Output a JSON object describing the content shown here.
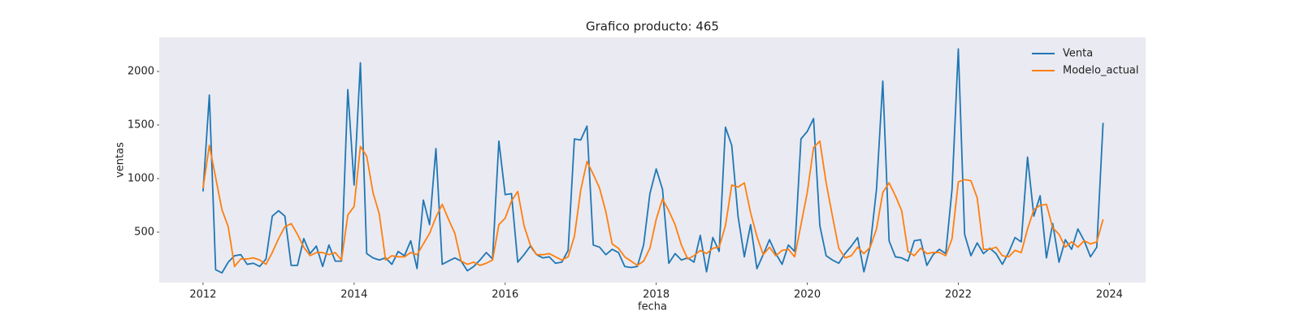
{
  "chart_data": {
    "type": "line",
    "title": "Grafico producto: 465",
    "xlabel": "fecha",
    "ylabel": "ventas",
    "x": [
      2012,
      2012.0833,
      2012.1667,
      2012.25,
      2012.3333,
      2012.4167,
      2012.5,
      2012.5833,
      2012.6667,
      2012.75,
      2012.8333,
      2012.9167,
      2013,
      2013.0833,
      2013.1667,
      2013.25,
      2013.3333,
      2013.4167,
      2013.5,
      2013.5833,
      2013.6667,
      2013.75,
      2013.8333,
      2013.9167,
      2014,
      2014.0833,
      2014.1667,
      2014.25,
      2014.3333,
      2014.4167,
      2014.5,
      2014.5833,
      2014.6667,
      2014.75,
      2014.8333,
      2014.9167,
      2015,
      2015.0833,
      2015.1667,
      2015.25,
      2015.3333,
      2015.4167,
      2015.5,
      2015.5833,
      2015.6667,
      2015.75,
      2015.8333,
      2015.9167,
      2016,
      2016.0833,
      2016.1667,
      2016.25,
      2016.3333,
      2016.4167,
      2016.5,
      2016.5833,
      2016.6667,
      2016.75,
      2016.8333,
      2016.9167,
      2017,
      2017.0833,
      2017.1667,
      2017.25,
      2017.3333,
      2017.4167,
      2017.5,
      2017.5833,
      2017.6667,
      2017.75,
      2017.8333,
      2017.9167,
      2018,
      2018.0833,
      2018.1667,
      2018.25,
      2018.3333,
      2018.4167,
      2018.5,
      2018.5833,
      2018.6667,
      2018.75,
      2018.8333,
      2018.9167,
      2019,
      2019.0833,
      2019.1667,
      2019.25,
      2019.3333,
      2019.4167,
      2019.5,
      2019.5833,
      2019.6667,
      2019.75,
      2019.8333,
      2019.9167,
      2020,
      2020.0833,
      2020.1667,
      2020.25,
      2020.3333,
      2020.4167,
      2020.5,
      2020.5833,
      2020.6667,
      2020.75,
      2020.8333,
      2020.9167,
      2021,
      2021.0833,
      2021.1667,
      2021.25,
      2021.3333,
      2021.4167,
      2021.5,
      2021.5833,
      2021.6667,
      2021.75,
      2021.8333,
      2021.9167,
      2022,
      2022.0833,
      2022.1667,
      2022.25,
      2022.3333,
      2022.4167,
      2022.5,
      2022.5833,
      2022.6667,
      2022.75,
      2022.8333,
      2022.9167,
      2023,
      2023.0833,
      2023.1667,
      2023.25,
      2023.3333,
      2023.4167,
      2023.5,
      2023.5833,
      2023.6667,
      2023.75,
      2023.8333,
      2023.9167
    ],
    "series": [
      {
        "name": "Venta",
        "color": "#1f77b4",
        "values": [
          880,
          1780,
          150,
          120,
          220,
          280,
          290,
          200,
          210,
          180,
          250,
          650,
          700,
          650,
          190,
          190,
          440,
          300,
          370,
          180,
          380,
          230,
          230,
          1830,
          940,
          2080,
          300,
          260,
          240,
          260,
          200,
          320,
          280,
          420,
          160,
          800,
          570,
          1280,
          200,
          230,
          260,
          230,
          140,
          180,
          240,
          310,
          250,
          1350,
          850,
          860,
          220,
          290,
          370,
          290,
          260,
          270,
          210,
          220,
          330,
          1370,
          1360,
          1490,
          380,
          360,
          290,
          340,
          310,
          180,
          170,
          180,
          380,
          860,
          1090,
          900,
          210,
          300,
          240,
          260,
          220,
          470,
          130,
          450,
          320,
          1480,
          1310,
          650,
          270,
          570,
          160,
          290,
          430,
          300,
          200,
          380,
          320,
          1370,
          1440,
          1560,
          560,
          280,
          240,
          210,
          300,
          370,
          450,
          130,
          370,
          900,
          1910,
          420,
          270,
          260,
          230,
          420,
          430,
          190,
          290,
          340,
          300,
          900,
          2210,
          480,
          280,
          400,
          300,
          350,
          300,
          200,
          310,
          450,
          410,
          1200,
          650,
          840,
          260,
          580,
          220,
          430,
          340,
          530,
          420,
          270,
          360,
          1520
        ]
      },
      {
        "name": "Modelo_actual",
        "color": "#ff7f0e",
        "values": [
          910,
          1310,
          1010,
          710,
          550,
          180,
          250,
          250,
          260,
          240,
          200,
          310,
          440,
          550,
          580,
          480,
          360,
          280,
          310,
          310,
          290,
          310,
          240,
          660,
          740,
          1300,
          1210,
          870,
          670,
          240,
          280,
          270,
          270,
          310,
          290,
          390,
          490,
          640,
          760,
          620,
          490,
          230,
          200,
          220,
          190,
          210,
          240,
          570,
          630,
          790,
          880,
          560,
          380,
          290,
          290,
          300,
          270,
          240,
          270,
          460,
          890,
          1160,
          1040,
          910,
          690,
          390,
          350,
          270,
          230,
          190,
          230,
          350,
          620,
          810,
          700,
          570,
          380,
          250,
          280,
          330,
          300,
          350,
          360,
          560,
          940,
          920,
          960,
          680,
          460,
          290,
          360,
          280,
          330,
          340,
          270,
          570,
          870,
          1290,
          1350,
          960,
          650,
          350,
          260,
          280,
          360,
          300,
          360,
          530,
          870,
          960,
          840,
          700,
          320,
          280,
          350,
          300,
          310,
          310,
          280,
          440,
          970,
          990,
          980,
          820,
          340,
          340,
          360,
          280,
          270,
          330,
          310,
          530,
          710,
          750,
          760,
          540,
          480,
          360,
          410,
          360,
          420,
          390,
          410,
          620
        ]
      }
    ],
    "xlim": [
      2011.42,
      2024.48
    ],
    "ylim": [
      30,
      2318
    ],
    "xticks": [
      2012,
      2014,
      2016,
      2018,
      2020,
      2022,
      2024
    ],
    "yticks": [
      500,
      1000,
      1500,
      2000
    ],
    "legend": "upper right"
  }
}
